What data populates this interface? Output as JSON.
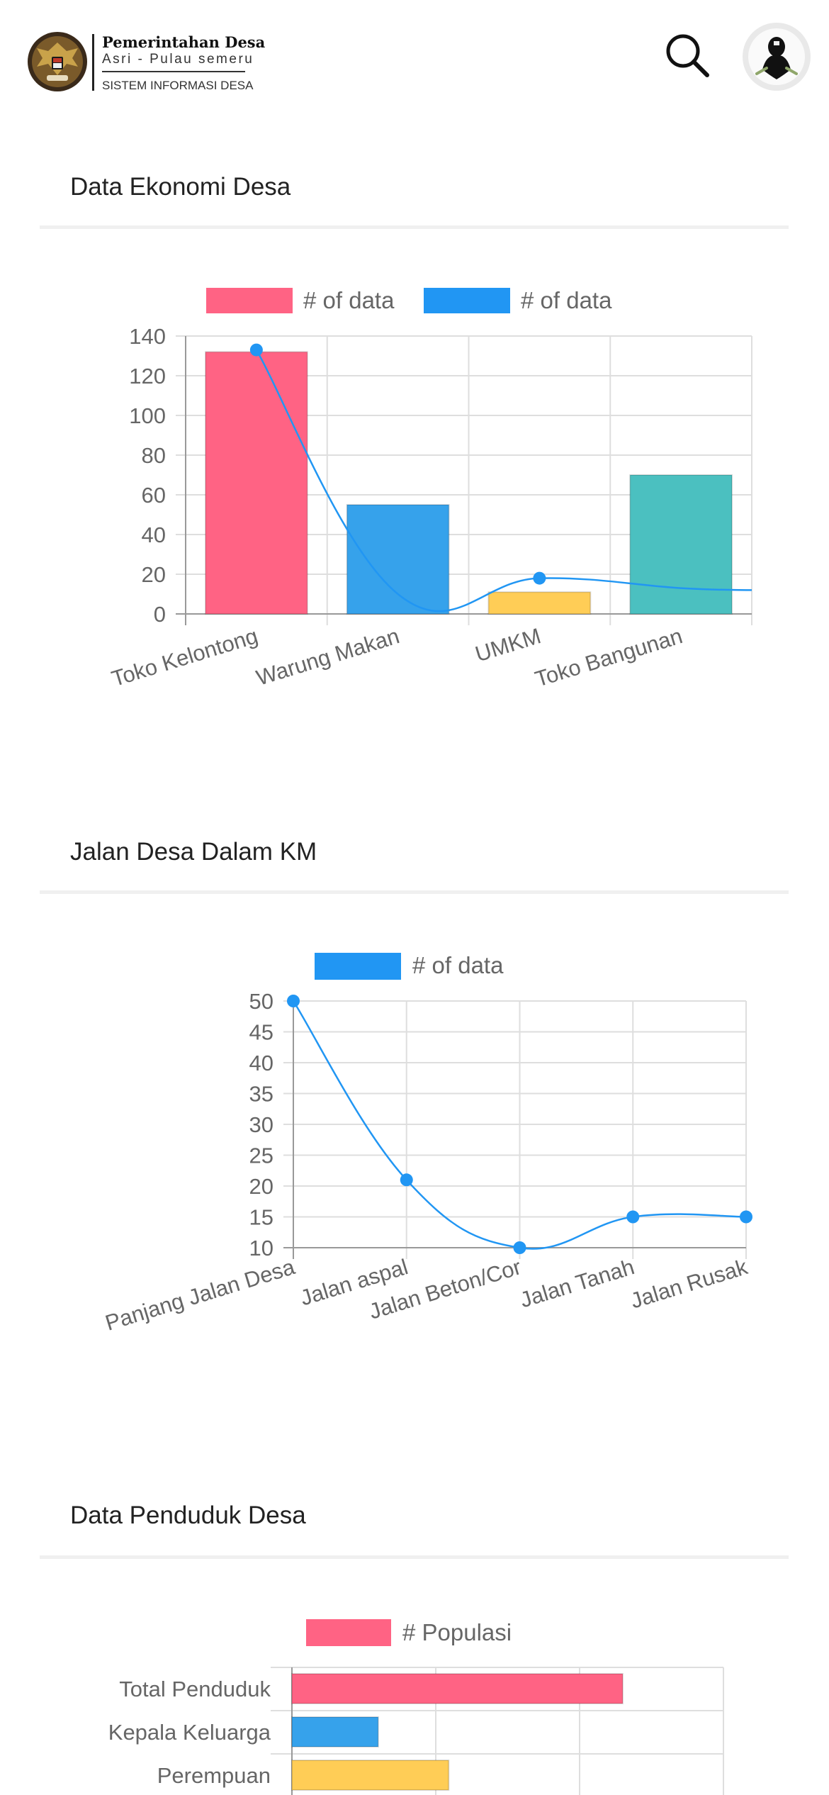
{
  "header": {
    "brand_title": "Pemerintahan Desa",
    "brand_subtitle": "Asri - Pulau semeru",
    "brand_system": "SISTEM INFORMASI DESA",
    "search_icon": "search-icon",
    "avatar_icon": "user-avatar"
  },
  "sections": [
    {
      "title": "Data Ekonomi Desa"
    },
    {
      "title": "Jalan Desa Dalam KM"
    },
    {
      "title": "Data Penduduk Desa"
    }
  ],
  "colors": {
    "red": "#ff6384",
    "blue": "#36a2eb",
    "yellow": "#ffcd56",
    "teal": "#4bc0c0",
    "legend_blue": "#2196f3",
    "line_blue": "#2196f3"
  },
  "chart_data": [
    {
      "type": "bar",
      "categories": [
        "Toko Kelontong",
        "Warung Makan",
        "UMKM",
        "Toko Bangunan"
      ],
      "series": [
        {
          "name": "# of data",
          "type": "bar",
          "values": [
            132,
            55,
            11,
            70
          ],
          "colors": [
            "#ff6384",
            "#36a2eb",
            "#ffcd56",
            "#4bc0c0"
          ]
        },
        {
          "name": "# of data",
          "type": "line",
          "values": [
            133,
            10,
            18,
            13
          ]
        }
      ],
      "ylim": [
        0,
        140
      ],
      "yticks": [
        0,
        20,
        40,
        60,
        80,
        100,
        120,
        140
      ],
      "legend_position": "top",
      "grid": true
    },
    {
      "type": "line",
      "categories": [
        "Panjang Jalan Desa",
        "Jalan aspal",
        "Jalan Beton/Cor",
        "Jalan Tanah",
        "Jalan Rusak"
      ],
      "series": [
        {
          "name": "# of data",
          "values": [
            50,
            21,
            10,
            15,
            15
          ]
        }
      ],
      "ylim": [
        10,
        50
      ],
      "yticks": [
        10,
        15,
        20,
        25,
        30,
        35,
        40,
        45,
        50
      ],
      "legend_position": "top",
      "grid": true
    },
    {
      "type": "bar",
      "orientation": "horizontal",
      "categories": [
        "Total Penduduk",
        "Kepala Keluarga",
        "Perempuan"
      ],
      "series": [
        {
          "name": "# Populasi",
          "values": [
            230,
            60,
            109
          ],
          "colors": [
            "#ff6384",
            "#36a2eb",
            "#ffcd56"
          ]
        }
      ],
      "xlim": [
        0,
        300
      ],
      "legend_position": "top",
      "grid": true
    }
  ]
}
